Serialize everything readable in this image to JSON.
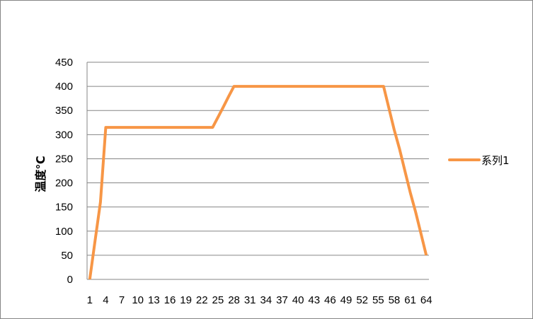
{
  "chart_data": {
    "type": "line",
    "title": "",
    "xlabel": "",
    "ylabel": "温度℃",
    "ylim": [
      0,
      450
    ],
    "yticks": [
      0,
      50,
      100,
      150,
      200,
      250,
      300,
      350,
      400,
      450
    ],
    "x": [
      1,
      2,
      3,
      4,
      5,
      6,
      7,
      8,
      9,
      10,
      11,
      12,
      13,
      14,
      15,
      16,
      17,
      18,
      19,
      20,
      21,
      22,
      23,
      24,
      25,
      26,
      27,
      28,
      29,
      30,
      31,
      32,
      33,
      34,
      35,
      36,
      37,
      38,
      39,
      40,
      41,
      42,
      43,
      44,
      45,
      46,
      47,
      48,
      49,
      50,
      51,
      52,
      53,
      54,
      55,
      56,
      57,
      58,
      59,
      60,
      61,
      62,
      63,
      64
    ],
    "xtick_labels": [
      "1",
      "4",
      "7",
      "10",
      "13",
      "16",
      "19",
      "22",
      "25",
      "28",
      "31",
      "34",
      "37",
      "40",
      "43",
      "46",
      "49",
      "52",
      "55",
      "58",
      "61",
      "64"
    ],
    "grid": "horizontal",
    "legend": "right",
    "series": [
      {
        "name": "系列1",
        "color": "#F79646",
        "values": [
          0,
          80,
          160,
          315,
          315,
          315,
          315,
          315,
          315,
          315,
          315,
          315,
          315,
          315,
          315,
          315,
          315,
          315,
          315,
          315,
          315,
          315,
          315,
          315,
          336,
          357,
          379,
          400,
          400,
          400,
          400,
          400,
          400,
          400,
          400,
          400,
          400,
          400,
          400,
          400,
          400,
          400,
          400,
          400,
          400,
          400,
          400,
          400,
          400,
          400,
          400,
          400,
          400,
          400,
          400,
          400,
          355,
          310,
          270,
          225,
          180,
          140,
          95,
          50
        ]
      }
    ]
  }
}
